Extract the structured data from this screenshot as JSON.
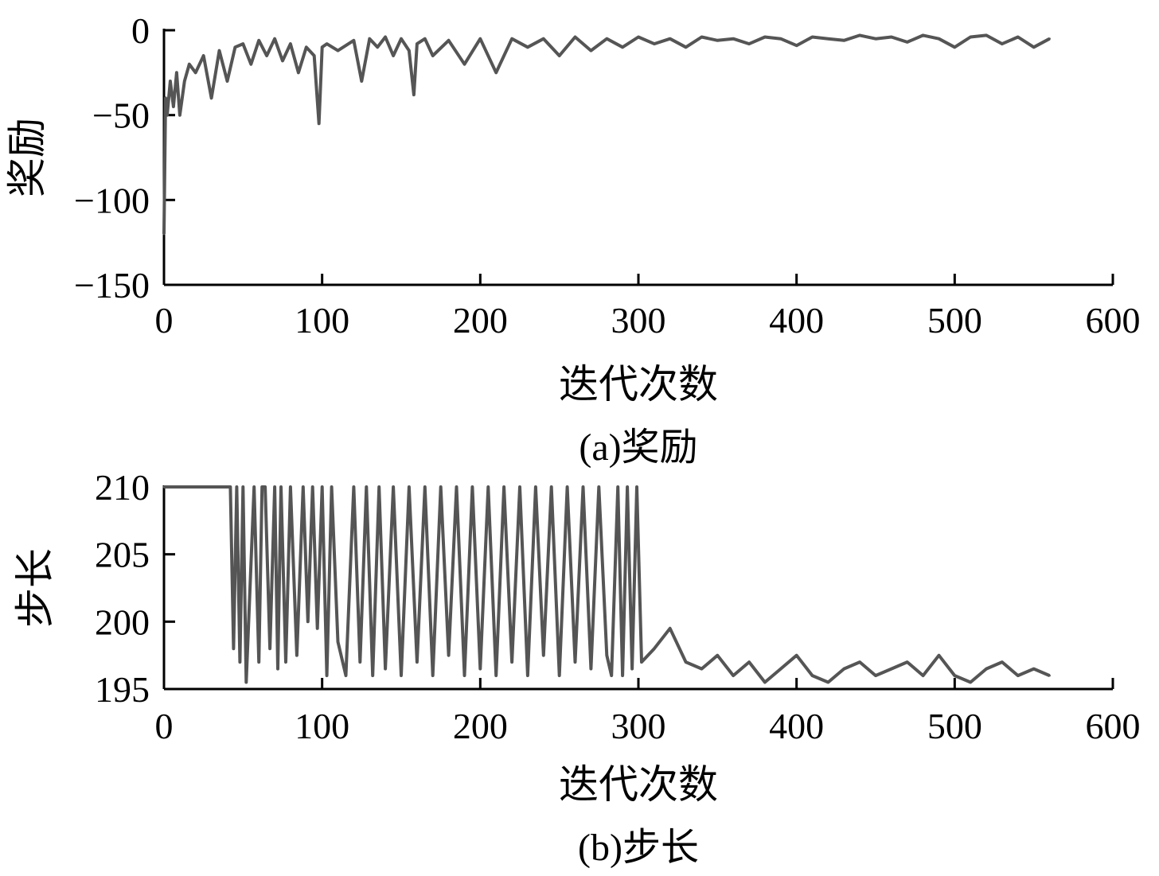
{
  "chart_data": [
    {
      "type": "line",
      "caption": "(a)奖励",
      "xlabel": "迭代次数",
      "ylabel": "奖励",
      "xlim": [
        0,
        600
      ],
      "ylim": [
        -150,
        0
      ],
      "xticks": [
        "0",
        "100",
        "200",
        "300",
        "400",
        "500",
        "600"
      ],
      "yticks": [
        "0",
        "−50",
        "−100",
        "−150"
      ],
      "grid": false,
      "series_color": "#555555",
      "series": [
        {
          "x": [
            0,
            1,
            2,
            4,
            6,
            8,
            10,
            13,
            16,
            20,
            25,
            30,
            35,
            40,
            45,
            50,
            55,
            60,
            65,
            70,
            75,
            80,
            85,
            90,
            95,
            98,
            100,
            103,
            110,
            120,
            125,
            130,
            135,
            140,
            145,
            150,
            155,
            158,
            160,
            165,
            170,
            180,
            190,
            200,
            210,
            220,
            230,
            240,
            250,
            260,
            270,
            280,
            290,
            300,
            310,
            320,
            330,
            340,
            350,
            360,
            370,
            380,
            390,
            400,
            410,
            420,
            430,
            440,
            450,
            460,
            470,
            480,
            490,
            500,
            510,
            520,
            530,
            540,
            550,
            560
          ],
          "y": [
            -120,
            -40,
            -50,
            -30,
            -45,
            -25,
            -50,
            -30,
            -20,
            -25,
            -15,
            -40,
            -12,
            -30,
            -10,
            -8,
            -20,
            -6,
            -15,
            -5,
            -18,
            -8,
            -25,
            -10,
            -15,
            -55,
            -10,
            -8,
            -12,
            -6,
            -30,
            -5,
            -10,
            -4,
            -15,
            -5,
            -12,
            -38,
            -8,
            -5,
            -15,
            -6,
            -20,
            -5,
            -25,
            -5,
            -10,
            -5,
            -15,
            -4,
            -12,
            -5,
            -10,
            -4,
            -8,
            -5,
            -10,
            -4,
            -6,
            -5,
            -8,
            -4,
            -5,
            -9,
            -4,
            -5,
            -6,
            -3,
            -5,
            -4,
            -7,
            -3,
            -5,
            -10,
            -4,
            -3,
            -8,
            -4,
            -10,
            -5
          ]
        }
      ]
    },
    {
      "type": "line",
      "caption": "(b)步长",
      "xlabel": "迭代次数",
      "ylabel": "步长",
      "xlim": [
        0,
        600
      ],
      "ylim": [
        195,
        210
      ],
      "xticks": [
        "0",
        "100",
        "200",
        "300",
        "400",
        "500",
        "600"
      ],
      "yticks": [
        "210",
        "205",
        "200",
        "195"
      ],
      "grid": false,
      "series_color": "#555555",
      "series": [
        {
          "x": [
            0,
            42,
            44,
            46,
            48,
            50,
            52,
            57,
            60,
            62,
            64,
            67,
            70,
            72,
            74,
            77,
            80,
            84,
            88,
            91,
            94,
            97,
            100,
            103,
            106,
            110,
            115,
            120,
            124,
            128,
            132,
            136,
            140,
            145,
            150,
            155,
            160,
            165,
            170,
            175,
            180,
            185,
            190,
            195,
            200,
            205,
            210,
            215,
            220,
            225,
            230,
            235,
            240,
            245,
            250,
            255,
            260,
            265,
            270,
            275,
            280,
            283,
            287,
            290,
            293,
            296,
            299,
            302,
            310,
            320,
            330,
            340,
            350,
            360,
            370,
            380,
            390,
            400,
            410,
            420,
            430,
            440,
            450,
            460,
            470,
            480,
            490,
            500,
            510,
            520,
            530,
            540,
            550,
            560
          ],
          "y": [
            210,
            210,
            198,
            210,
            197,
            210,
            195.5,
            210,
            197,
            210,
            210,
            198,
            210,
            196.5,
            210,
            197,
            210,
            197.5,
            210,
            200,
            210,
            199.5,
            210,
            196,
            210,
            198.5,
            196,
            210,
            197,
            210,
            196,
            210,
            196.5,
            210,
            196,
            210,
            197,
            210,
            196,
            210,
            197.5,
            210,
            196,
            210,
            196.5,
            210,
            196,
            210,
            197,
            210,
            196,
            210,
            197.5,
            210,
            196,
            210,
            197,
            210,
            196.5,
            210,
            197.5,
            196,
            210,
            196,
            210,
            196.5,
            210,
            197,
            198,
            199.5,
            197,
            196.5,
            197.5,
            196,
            197,
            195.5,
            196.5,
            197.5,
            196,
            195.5,
            196.5,
            197,
            196,
            196.5,
            197,
            196,
            197.5,
            196,
            195.5,
            196.5,
            197,
            196,
            196.5,
            196
          ]
        }
      ]
    }
  ]
}
